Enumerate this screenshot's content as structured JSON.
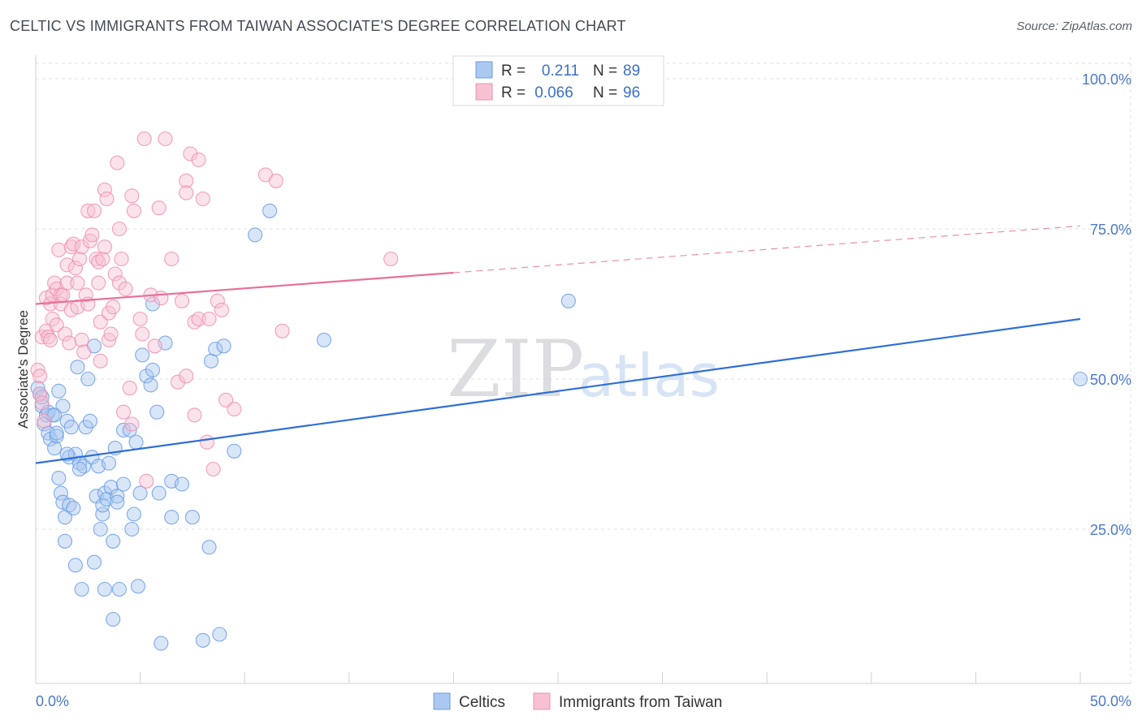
{
  "title": "CELTIC VS IMMIGRANTS FROM TAIWAN ASSOCIATE'S DEGREE CORRELATION CHART",
  "source": "Source: ZipAtlas.com",
  "watermark": {
    "zip": "ZIP",
    "atlas": "atlas"
  },
  "chart_data": {
    "type": "scatter",
    "title": "CELTIC VS IMMIGRANTS FROM TAIWAN ASSOCIATE'S DEGREE CORRELATION CHART",
    "xlabel": "",
    "ylabel": "Associate's Degree",
    "xlim": [
      0,
      50
    ],
    "ylim": [
      0,
      105
    ],
    "x_tick_labels": [
      {
        "value": 0,
        "label": "0.0%"
      },
      {
        "value": 50,
        "label": "50.0%"
      }
    ],
    "y_tick_labels": [
      {
        "value": 25,
        "label": "25.0%"
      },
      {
        "value": 50,
        "label": "50.0%"
      },
      {
        "value": 75,
        "label": "75.0%"
      },
      {
        "value": 100,
        "label": "100.0%"
      }
    ],
    "legend": {
      "placement": "top-center",
      "rows": [
        {
          "r_label": "R =",
          "r_value": "0.211",
          "n_label": "N =",
          "n_value": "89"
        },
        {
          "r_label": "R =",
          "r_value": "0.066",
          "n_label": "N =",
          "n_value": "96"
        }
      ]
    },
    "series": [
      {
        "name": "Celtics",
        "color": "#6a9ee6",
        "trend": {
          "x0": 0,
          "y0": 36,
          "x1": 50,
          "y1": 60,
          "dashed_from": null
        },
        "points": [
          [
            0.1,
            48.5
          ],
          [
            0.2,
            47.5
          ],
          [
            0.3,
            45.5
          ],
          [
            0.4,
            42.5
          ],
          [
            0.5,
            44
          ],
          [
            0.6,
            41
          ],
          [
            0.7,
            40
          ],
          [
            0.8,
            44
          ],
          [
            0.9,
            38.5
          ],
          [
            1.0,
            40.5
          ],
          [
            1.1,
            33.5
          ],
          [
            1.1,
            48
          ],
          [
            1.2,
            31
          ],
          [
            1.3,
            29.5
          ],
          [
            1.3,
            45.5
          ],
          [
            1.4,
            23
          ],
          [
            1.4,
            27
          ],
          [
            1.5,
            43
          ],
          [
            1.6,
            29
          ],
          [
            1.6,
            37
          ],
          [
            1.7,
            42
          ],
          [
            1.8,
            28.5
          ],
          [
            1.9,
            19
          ],
          [
            1.9,
            37.5
          ],
          [
            2.0,
            52
          ],
          [
            2.1,
            36
          ],
          [
            2.2,
            15
          ],
          [
            2.3,
            35.5
          ],
          [
            2.4,
            42
          ],
          [
            2.5,
            50
          ],
          [
            2.6,
            43
          ],
          [
            2.7,
            37
          ],
          [
            2.8,
            55.5
          ],
          [
            2.8,
            19.5
          ],
          [
            2.9,
            30.5
          ],
          [
            3.0,
            35.5
          ],
          [
            3.1,
            25
          ],
          [
            3.2,
            27.5
          ],
          [
            3.2,
            29
          ],
          [
            3.3,
            31
          ],
          [
            3.3,
            15
          ],
          [
            3.4,
            30
          ],
          [
            3.5,
            36
          ],
          [
            3.6,
            32
          ],
          [
            3.7,
            10
          ],
          [
            3.7,
            23
          ],
          [
            3.8,
            38.5
          ],
          [
            3.9,
            30.5
          ],
          [
            4.0,
            15
          ],
          [
            4.2,
            41.5
          ],
          [
            4.5,
            41.5
          ],
          [
            4.6,
            25
          ],
          [
            4.7,
            27.5
          ],
          [
            4.8,
            39.5
          ],
          [
            4.9,
            15.5
          ],
          [
            5.0,
            31
          ],
          [
            5.1,
            54
          ],
          [
            5.3,
            50.5
          ],
          [
            5.5,
            49
          ],
          [
            5.6,
            51.5
          ],
          [
            5.6,
            62.5
          ],
          [
            5.8,
            44.5
          ],
          [
            5.9,
            31
          ],
          [
            6.0,
            6
          ],
          [
            6.2,
            56
          ],
          [
            6.5,
            33
          ],
          [
            6.5,
            27
          ],
          [
            7.0,
            32.5
          ],
          [
            7.5,
            27
          ],
          [
            8.0,
            6.5
          ],
          [
            8.3,
            22
          ],
          [
            8.4,
            53
          ],
          [
            8.6,
            55
          ],
          [
            8.8,
            7.5
          ],
          [
            9.0,
            55.5
          ],
          [
            9.5,
            38
          ],
          [
            10.5,
            74
          ],
          [
            11.2,
            78
          ],
          [
            13.8,
            56.5
          ],
          [
            25.5,
            63
          ],
          [
            50,
            50
          ],
          [
            0.3,
            47
          ],
          [
            0.6,
            44.5
          ],
          [
            1.0,
            41
          ],
          [
            2.1,
            35
          ],
          [
            3.9,
            29.5
          ],
          [
            4.2,
            32.5
          ],
          [
            0.9,
            44
          ],
          [
            1.5,
            37.5
          ]
        ]
      },
      {
        "name": "Immigrants from Taiwan",
        "color": "#f08fb0",
        "trend": {
          "x0": 0,
          "y0": 62.5,
          "x1": 50,
          "y1": 75.5,
          "dashed_from": 20
        },
        "points": [
          [
            0.1,
            51.5
          ],
          [
            0.2,
            50.5
          ],
          [
            0.2,
            47.5
          ],
          [
            0.3,
            46
          ],
          [
            0.3,
            57
          ],
          [
            0.4,
            43
          ],
          [
            0.5,
            58
          ],
          [
            0.5,
            63.5
          ],
          [
            0.6,
            57
          ],
          [
            0.7,
            56.5
          ],
          [
            0.7,
            62.5
          ],
          [
            0.8,
            60
          ],
          [
            0.8,
            64
          ],
          [
            0.9,
            66
          ],
          [
            1.0,
            59
          ],
          [
            1.0,
            65
          ],
          [
            1.1,
            71.5
          ],
          [
            1.2,
            64
          ],
          [
            1.2,
            62.5
          ],
          [
            1.3,
            64
          ],
          [
            1.4,
            57.5
          ],
          [
            1.5,
            66
          ],
          [
            1.5,
            69
          ],
          [
            1.6,
            56
          ],
          [
            1.7,
            61.5
          ],
          [
            1.7,
            72
          ],
          [
            1.8,
            72.5
          ],
          [
            1.9,
            68.5
          ],
          [
            2.0,
            66
          ],
          [
            2.0,
            62
          ],
          [
            2.1,
            70
          ],
          [
            2.2,
            72
          ],
          [
            2.2,
            56.5
          ],
          [
            2.3,
            54.5
          ],
          [
            2.4,
            64
          ],
          [
            2.5,
            62.5
          ],
          [
            2.5,
            78
          ],
          [
            2.6,
            73
          ],
          [
            2.7,
            74
          ],
          [
            2.8,
            78
          ],
          [
            2.9,
            70
          ],
          [
            3.0,
            69.5
          ],
          [
            3.0,
            66
          ],
          [
            3.1,
            59.5
          ],
          [
            3.1,
            53
          ],
          [
            3.2,
            70
          ],
          [
            3.3,
            72
          ],
          [
            3.3,
            81.5
          ],
          [
            3.4,
            80
          ],
          [
            3.5,
            56.5
          ],
          [
            3.5,
            61
          ],
          [
            3.6,
            57.5
          ],
          [
            3.7,
            62
          ],
          [
            3.8,
            67.5
          ],
          [
            3.9,
            86
          ],
          [
            4.0,
            66
          ],
          [
            4.0,
            75
          ],
          [
            4.1,
            70
          ],
          [
            4.2,
            44.5
          ],
          [
            4.3,
            65
          ],
          [
            4.5,
            48.5
          ],
          [
            4.6,
            42.5
          ],
          [
            4.6,
            80.5
          ],
          [
            4.7,
            78
          ],
          [
            5.0,
            60
          ],
          [
            5.1,
            57.5
          ],
          [
            5.2,
            90
          ],
          [
            5.3,
            33
          ],
          [
            5.5,
            64
          ],
          [
            5.7,
            55.5
          ],
          [
            5.9,
            78.5
          ],
          [
            6.0,
            63.5
          ],
          [
            6.2,
            90
          ],
          [
            6.5,
            70
          ],
          [
            6.8,
            49.5
          ],
          [
            7.0,
            63
          ],
          [
            7.2,
            50.5
          ],
          [
            7.2,
            83
          ],
          [
            7.4,
            87.5
          ],
          [
            7.6,
            44
          ],
          [
            7.6,
            59.5
          ],
          [
            7.8,
            60
          ],
          [
            7.8,
            86.5
          ],
          [
            8.0,
            80
          ],
          [
            8.2,
            39.5
          ],
          [
            8.3,
            60
          ],
          [
            8.5,
            35
          ],
          [
            8.7,
            63
          ],
          [
            8.9,
            61.5
          ],
          [
            9.1,
            46.5
          ],
          [
            9.5,
            45
          ],
          [
            11.0,
            84
          ],
          [
            11.5,
            83
          ],
          [
            11.8,
            58
          ],
          [
            17.0,
            70
          ],
          [
            7.2,
            81
          ]
        ]
      }
    ]
  },
  "bottom_legend": [
    {
      "label": "Celtics",
      "color": "#aac8f0"
    },
    {
      "label": "Immigrants from Taiwan",
      "color": "#f7c0d3"
    }
  ]
}
